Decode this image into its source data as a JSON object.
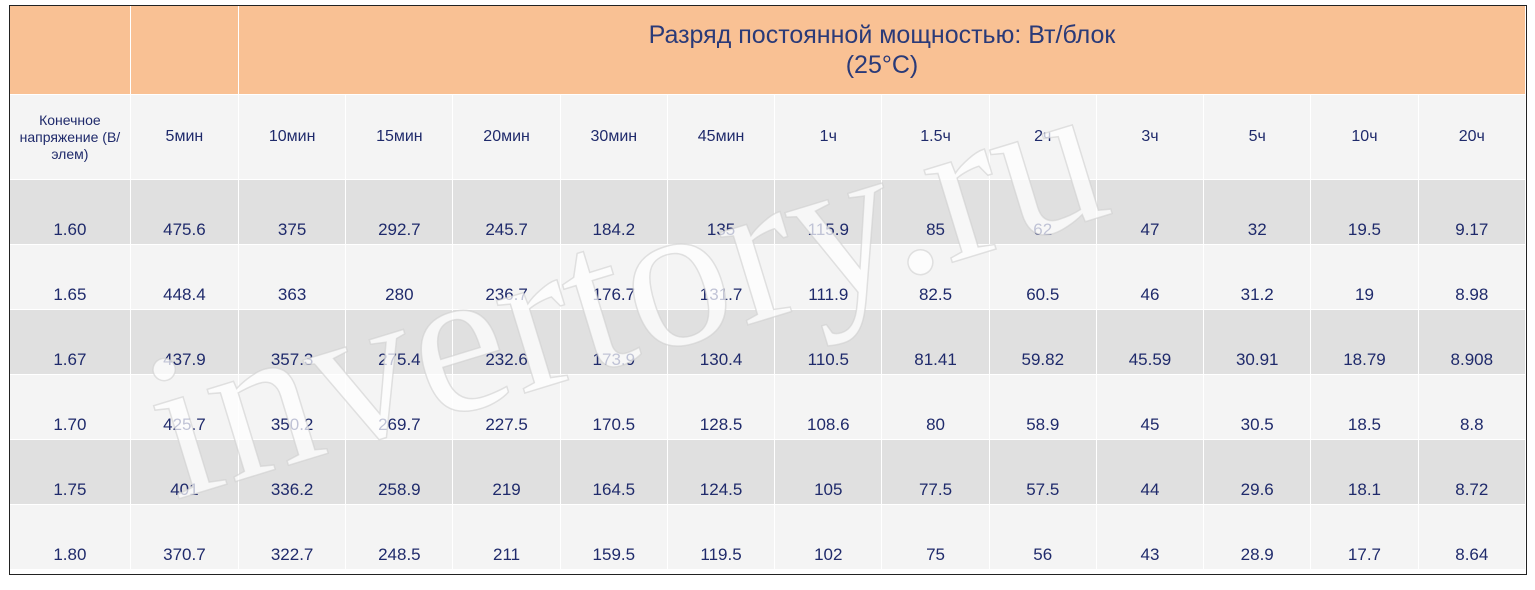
{
  "title_line1": "Разряд постоянной мощностью: Вт/блок",
  "title_line2": "(25°C)",
  "label_header": "Конечное напряжение (В/элем)",
  "columns": [
    "5мин",
    "10мин",
    "15мин",
    "20мин",
    "30мин",
    "45мин",
    "1ч",
    "1.5ч",
    "2ч",
    "3ч",
    "5ч",
    "10ч",
    "20ч"
  ],
  "rows": [
    {
      "voltage": "1.60",
      "values": [
        "475.6",
        "375",
        "292.7",
        "245.7",
        "184.2",
        "135",
        "115.9",
        "85",
        "62",
        "47",
        "32",
        "19.5",
        "9.17"
      ]
    },
    {
      "voltage": "1.65",
      "values": [
        "448.4",
        "363",
        "280",
        "236.7",
        "176.7",
        "131.7",
        "111.9",
        "82.5",
        "60.5",
        "46",
        "31.2",
        "19",
        "8.98"
      ]
    },
    {
      "voltage": "1.67",
      "values": [
        "437.9",
        "357.3",
        "275.4",
        "232.6",
        "173.9",
        "130.4",
        "110.5",
        "81.41",
        "59.82",
        "45.59",
        "30.91",
        "18.79",
        "8.908"
      ]
    },
    {
      "voltage": "1.70",
      "values": [
        "425.7",
        "350.2",
        "269.7",
        "227.5",
        "170.5",
        "128.5",
        "108.6",
        "80",
        "58.9",
        "45",
        "30.5",
        "18.5",
        "8.8"
      ]
    },
    {
      "voltage": "1.75",
      "values": [
        "401",
        "336.2",
        "258.9",
        "219",
        "164.5",
        "124.5",
        "105",
        "77.5",
        "57.5",
        "44",
        "29.6",
        "18.1",
        "8.72"
      ]
    },
    {
      "voltage": "1.80",
      "values": [
        "370.7",
        "322.7",
        "248.5",
        "211",
        "159.5",
        "119.5",
        "102",
        "75",
        "56",
        "43",
        "28.9",
        "17.7",
        "8.64"
      ]
    }
  ],
  "watermark": "invertory.ru",
  "colors": {
    "title_bg": "#f9c194",
    "header_bg": "#f4f4f4",
    "row_dark": "#e0e0e0",
    "row_light": "#f4f4f4",
    "text": "#1f2a6b"
  }
}
